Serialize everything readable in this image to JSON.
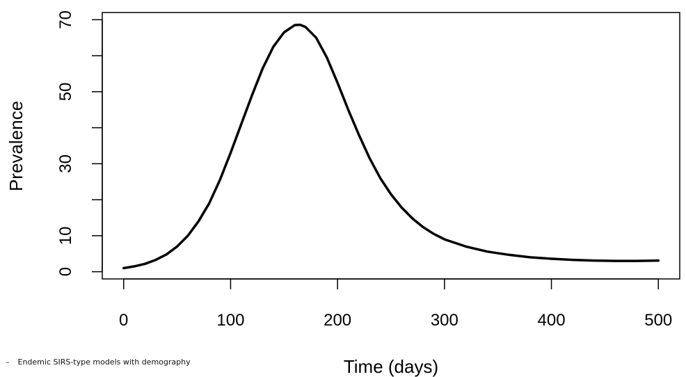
{
  "chart_data": {
    "type": "line",
    "title": "",
    "xlabel": "Time (days)",
    "ylabel": "Prevalence",
    "xlim": [
      -20,
      520
    ],
    "ylim": [
      -2,
      72
    ],
    "xticks": [
      0,
      100,
      200,
      300,
      400,
      500
    ],
    "yticks": [
      0,
      10,
      20,
      30,
      40,
      50,
      60,
      70
    ],
    "ytick_labels": [
      "0",
      "10",
      "",
      "30",
      "",
      "50",
      "",
      "70"
    ],
    "grid": false,
    "legend": "none",
    "line_color": "#000000",
    "series": [
      {
        "x": [
          0,
          10,
          20,
          30,
          40,
          50,
          60,
          70,
          80,
          90,
          100,
          110,
          120,
          130,
          140,
          150,
          160,
          165,
          170,
          180,
          190,
          200,
          210,
          220,
          230,
          240,
          250,
          260,
          270,
          280,
          290,
          300,
          320,
          340,
          360,
          380,
          400,
          420,
          440,
          460,
          480,
          500
        ],
        "values": [
          1.0,
          1.5,
          2.2,
          3.3,
          4.8,
          7.0,
          10.0,
          14.0,
          19.0,
          25.5,
          33.0,
          41.0,
          49.0,
          56.5,
          62.5,
          66.5,
          68.5,
          68.6,
          68.0,
          65.0,
          59.5,
          52.5,
          45.0,
          38.0,
          31.5,
          26.0,
          21.5,
          17.8,
          14.8,
          12.4,
          10.5,
          9.0,
          7.0,
          5.6,
          4.7,
          4.0,
          3.6,
          3.3,
          3.1,
          3.0,
          3.0,
          3.1
        ]
      }
    ]
  },
  "footer": {
    "dash": "–",
    "text": "Endemic SIRS-type models with demography"
  }
}
